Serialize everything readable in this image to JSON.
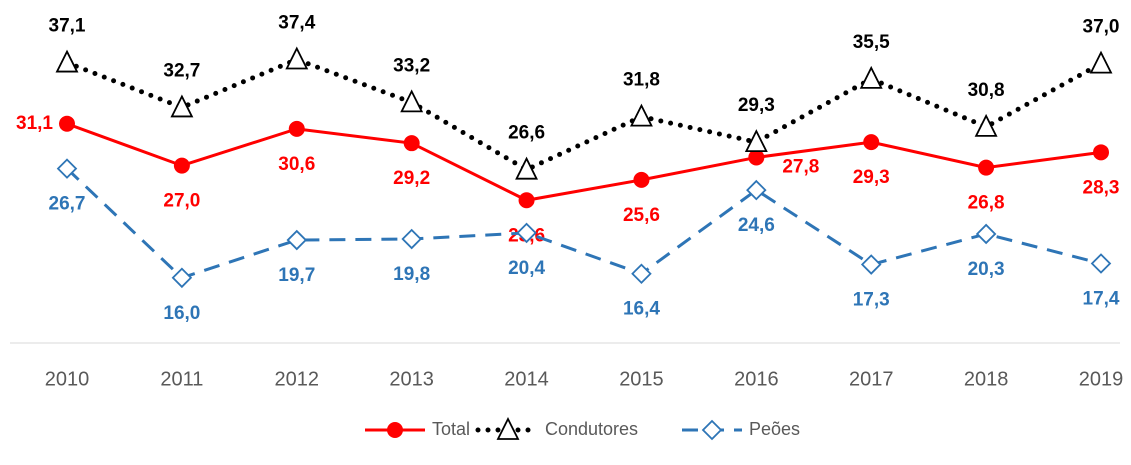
{
  "chart_data": {
    "type": "line",
    "categories": [
      "2010",
      "2011",
      "2012",
      "2013",
      "2014",
      "2015",
      "2016",
      "2017",
      "2018",
      "2019"
    ],
    "ylim": [
      10,
      40
    ],
    "series": [
      {
        "name": "Total",
        "color": "#ff0000",
        "marker": "circle",
        "line_style": "solid",
        "values": [
          31.1,
          27.0,
          30.6,
          29.2,
          23.6,
          25.6,
          27.8,
          29.3,
          26.8,
          28.3
        ],
        "value_labels": [
          "31,1",
          "27,0",
          "30,6",
          "29,2",
          "23,6",
          "25,6",
          "27,8",
          "29,3",
          "26,8",
          "28,3"
        ]
      },
      {
        "name": "Condutores",
        "color": "#000000",
        "marker": "triangle",
        "line_style": "dotted",
        "values": [
          37.1,
          32.7,
          37.4,
          33.2,
          26.6,
          31.8,
          29.3,
          35.5,
          30.8,
          37.0
        ],
        "value_labels": [
          "37,1",
          "32,7",
          "37,4",
          "33,2",
          "26,6",
          "31,8",
          "29,3",
          "35,5",
          "30,8",
          "37,0"
        ]
      },
      {
        "name": "Peões",
        "color": "#2e75b6",
        "marker": "diamond",
        "line_style": "dashed",
        "values": [
          26.7,
          16.0,
          19.7,
          19.8,
          20.4,
          16.4,
          24.6,
          17.3,
          20.3,
          17.4
        ],
        "value_labels": [
          "26,7",
          "16,0",
          "19,7",
          "19,8",
          "20,4",
          "16,4",
          "24,6",
          "17,3",
          "20,3",
          "17,4"
        ]
      }
    ]
  }
}
